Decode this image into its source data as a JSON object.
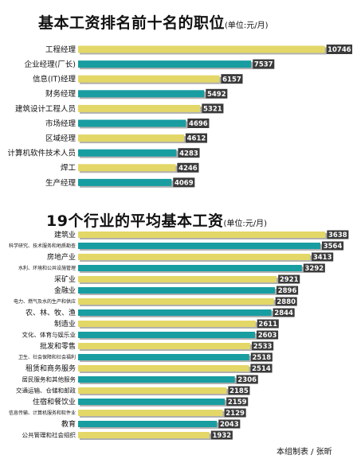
{
  "credit": "本组制表 / 张昕",
  "colors": {
    "yellow": "#e3d768",
    "teal": "#189da1",
    "valueBg": "#3a3a3a",
    "valueText": "#ffffff",
    "shadow": "#b0b0b0"
  },
  "chart_data": [
    {
      "type": "bar",
      "orientation": "horizontal",
      "title": "基本工资排名前十名的职位",
      "unit": "(单位:元/月)",
      "categories": [
        "工程经理",
        "企业经理(厂长)",
        "信息(IT)经理",
        "财务经理",
        "建筑设计工程人员",
        "市场经理",
        "区域经理",
        "计算机软件技术人员",
        "焊工",
        "生产经理"
      ],
      "values": [
        10746,
        7537,
        6157,
        5492,
        5321,
        4696,
        4612,
        4283,
        4246,
        4069
      ]
    },
    {
      "type": "bar",
      "orientation": "horizontal",
      "title": "19个行业的平均基本工资",
      "unit": "(单位:元/月)",
      "categories": [
        "建筑业",
        "科学研究、技术服务和地质勘查",
        "房地产业",
        "水利、环境和公共设施管理",
        "采矿业",
        "金融业",
        "电力、燃气及水的生产和供应",
        "农、林、牧、渔",
        "制造业",
        "文化、体育与娱乐业",
        "批发和零售",
        "卫生、社会保障和社会福利",
        "租赁和商务服务",
        "居民服务和其他服务",
        "交通运输、仓储和邮政",
        "住宿和餐饮业",
        "信息传输、计算机服务和软件业",
        "教育",
        "公共管理和社会组织"
      ],
      "values": [
        3638,
        3564,
        3413,
        3292,
        2921,
        2896,
        2880,
        2844,
        2611,
        2603,
        2533,
        2518,
        2514,
        2306,
        2185,
        2159,
        2129,
        2043,
        1932
      ]
    }
  ]
}
